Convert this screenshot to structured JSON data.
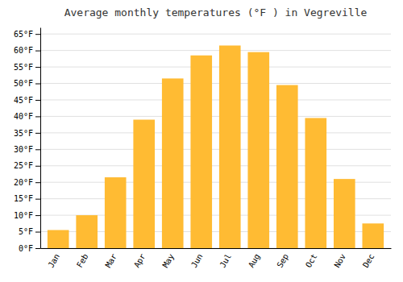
{
  "chart_data": {
    "type": "bar",
    "title": "Average monthly temperatures (°F ) in Vegreville",
    "categories": [
      "Jan",
      "Feb",
      "Mar",
      "Apr",
      "May",
      "Jun",
      "Jul",
      "Aug",
      "Sep",
      "Oct",
      "Nov",
      "Dec"
    ],
    "values": [
      5.5,
      10.0,
      21.5,
      39.0,
      51.5,
      58.5,
      61.5,
      59.5,
      49.5,
      39.5,
      21.0,
      7.5
    ],
    "color": "#FFBB33",
    "ylim": [
      0,
      67
    ],
    "yticks": [
      {
        "value": 0,
        "label": "0°F"
      },
      {
        "value": 5,
        "label": "5°F"
      },
      {
        "value": 10,
        "label": "10°F"
      },
      {
        "value": 15,
        "label": "15°F"
      },
      {
        "value": 20,
        "label": "20°F"
      },
      {
        "value": 25,
        "label": "25°F"
      },
      {
        "value": 30,
        "label": "30°F"
      },
      {
        "value": 35,
        "label": "35°F"
      },
      {
        "value": 40,
        "label": "40°F"
      },
      {
        "value": 45,
        "label": "45°F"
      },
      {
        "value": 50,
        "label": "50°F"
      },
      {
        "value": 55,
        "label": "55°F"
      },
      {
        "value": 60,
        "label": "60°F"
      },
      {
        "value": 65,
        "label": "65°F"
      }
    ],
    "grid": true
  }
}
